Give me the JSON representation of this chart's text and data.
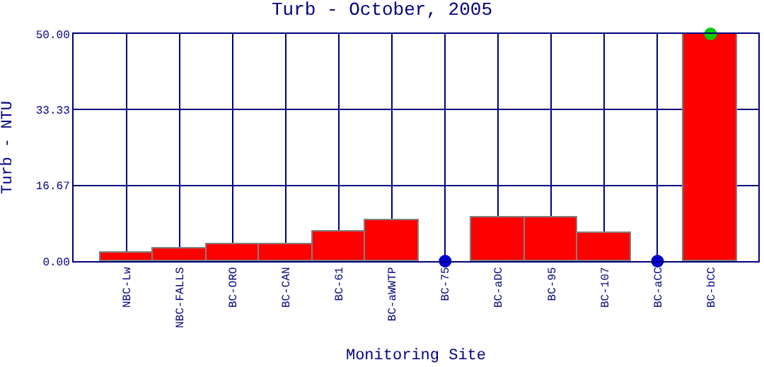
{
  "chart_data": {
    "type": "bar",
    "title": "Turb - October, 2005",
    "xlabel": "Monitoring Site",
    "ylabel": "Turb - NTU",
    "categories": [
      "NBC-Lw",
      "NBC-FALLS",
      "BC-ORO",
      "BC-CAN",
      "BC-61",
      "BC-aWWTP",
      "BC-75",
      "BC-aDC",
      "BC-95",
      "BC-107",
      "BC-aCC",
      "BC-bCC"
    ],
    "series": [
      {
        "color": "#ff0000",
        "values": [
          1.9,
          2.8,
          3.7,
          3.7,
          6.5,
          9.0,
          null,
          9.6,
          9.6,
          6.2,
          null,
          50
        ]
      },
      {
        "type": "scatter",
        "marker": "circle",
        "x": [
          "BC-75",
          "BC-aCC",
          "BC-bCC"
        ],
        "values": [
          0,
          0,
          50
        ],
        "colors": [
          "#0000cc",
          "#0000cc",
          "#00cc00"
        ]
      }
    ],
    "ylim": [
      0,
      50
    ],
    "yticks": [
      {
        "value": 0,
        "label": "0.00"
      },
      {
        "value": 16.67,
        "label": "16.67"
      },
      {
        "value": 33.33,
        "label": "33.33"
      },
      {
        "value": 50,
        "label": "50.00"
      }
    ],
    "grid": true
  }
}
